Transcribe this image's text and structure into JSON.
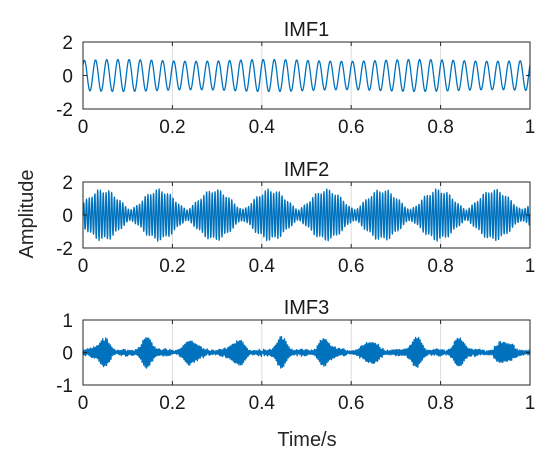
{
  "figure": {
    "ylabel": "Amplitude",
    "xlabel": "Time/s"
  },
  "chart_data": [
    {
      "type": "line",
      "title": "IMF1",
      "xlim": [
        0,
        1
      ],
      "ylim": [
        -2,
        2
      ],
      "xticks": [
        "0",
        "0.2",
        "0.4",
        "0.6",
        "0.8",
        "1"
      ],
      "yticks": [
        "2",
        "0",
        "-2"
      ],
      "grid": "vertical",
      "color": "#0072bd",
      "series": [
        {
          "description": "near-constant sinusoid, ~40 cycles over 1 s, amplitude ~0.9 with slight modulation",
          "frequency_hz": 40,
          "amplitude": 0.9
        }
      ]
    },
    {
      "type": "line",
      "title": "IMF2",
      "xlim": [
        0,
        1
      ],
      "ylim": [
        -2,
        2
      ],
      "xticks": [
        "0",
        "0.2",
        "0.4",
        "0.6",
        "0.8",
        "1"
      ],
      "yticks": [
        "2",
        "0",
        "-2"
      ],
      "grid": "vertical",
      "color": "#0072bd",
      "series": [
        {
          "description": "amplitude-modulated oscillation with ~8 beats, peak amplitude ~1.6",
          "carrier_hz": 160,
          "beats": 8,
          "amplitude": 1.6
        }
      ]
    },
    {
      "type": "line",
      "title": "IMF3",
      "xlim": [
        0,
        1
      ],
      "ylim": [
        -1,
        1
      ],
      "xticks": [
        "0",
        "0.2",
        "0.4",
        "0.6",
        "0.8",
        "1"
      ],
      "yticks": [
        "1",
        "0",
        "-1"
      ],
      "grid": "vertical",
      "color": "#0072bd",
      "series": [
        {
          "description": "noisy high-frequency residual with periodic bursts, amplitude ~0.1-0.4",
          "carrier_hz": 300,
          "amplitude": 0.3
        }
      ]
    }
  ]
}
